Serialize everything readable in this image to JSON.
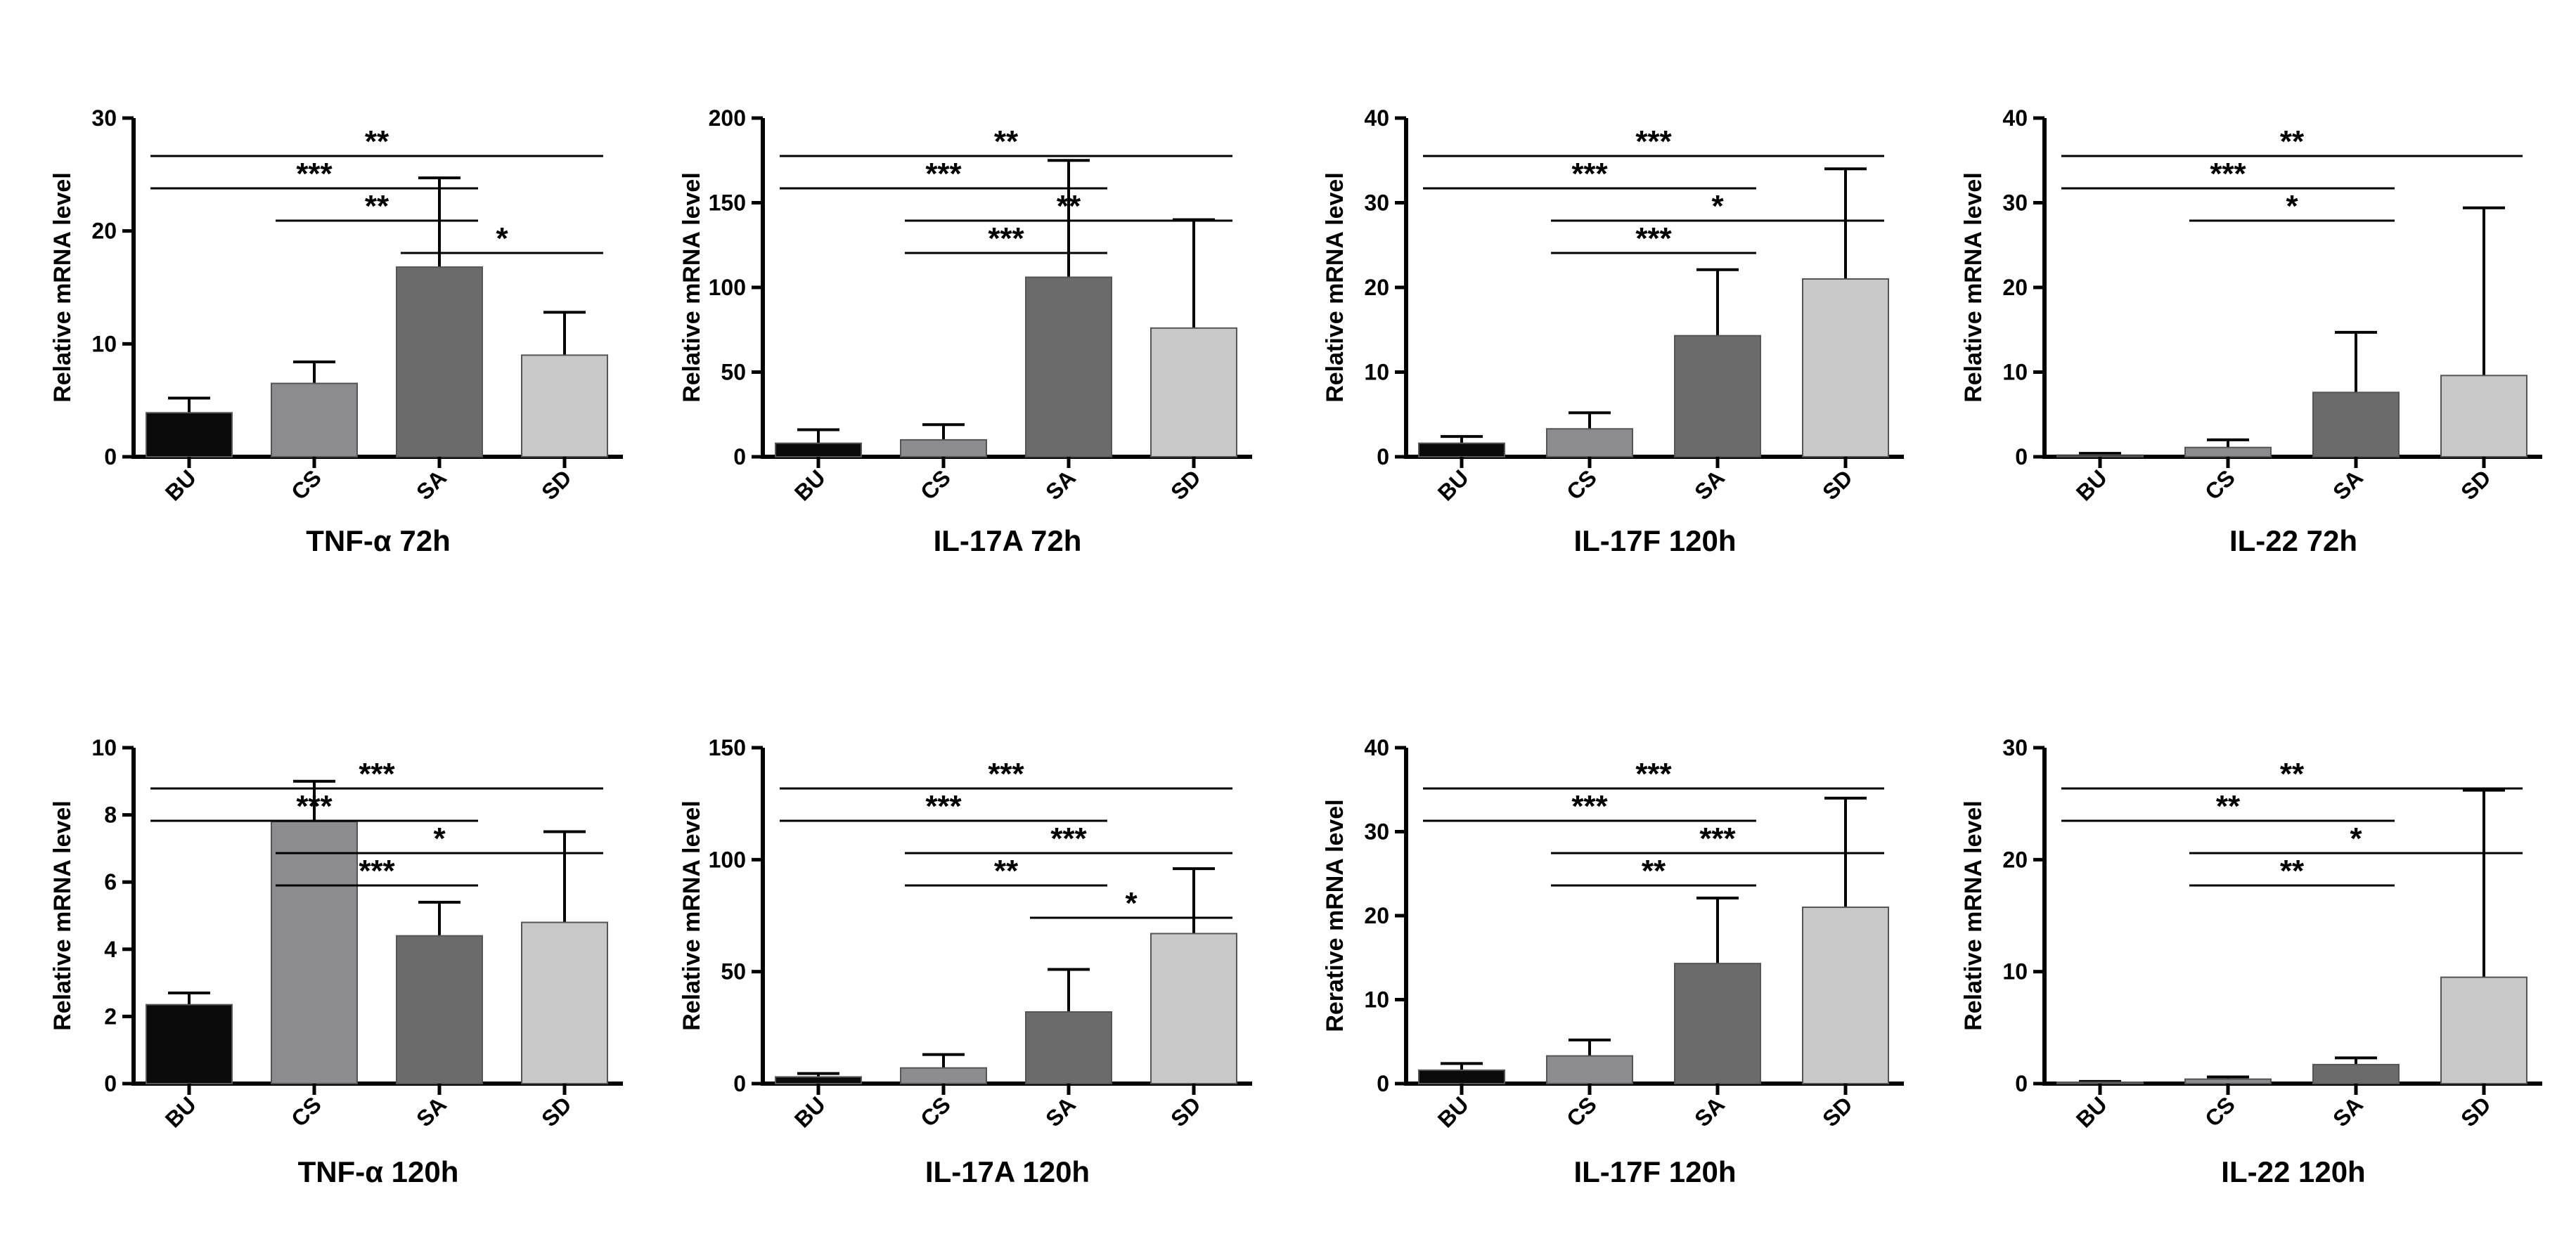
{
  "colors": {
    "BU": "#0a0a0a",
    "CS": "#8c8c90",
    "SA": "#6b6b6b",
    "SD": "#c8c8c8"
  },
  "chart_data": [
    {
      "type": "bar",
      "title": "TNF-α 72h",
      "ylabel": "Relative mRNA level",
      "categories": [
        "BU",
        "CS",
        "SA",
        "SD"
      ],
      "values": [
        3.9,
        6.5,
        16.8,
        9.0
      ],
      "errors": [
        1.3,
        1.9,
        7.9,
        3.8
      ],
      "ylim": [
        0,
        30
      ],
      "yticks": [
        "0",
        "10",
        "20",
        "30"
      ],
      "comparisons": [
        {
          "from": "BU",
          "to": "SD",
          "label": "**"
        },
        {
          "from": "BU",
          "to": "SA",
          "label": "***"
        },
        {
          "from": "CS",
          "to": "SA",
          "label": "**"
        },
        {
          "from": "SA",
          "to": "SD",
          "label": "*"
        }
      ]
    },
    {
      "type": "bar",
      "title": "IL-17A 72h",
      "ylabel": "Relative mRNA level",
      "categories": [
        "BU",
        "CS",
        "SA",
        "SD"
      ],
      "values": [
        8,
        10,
        106,
        76
      ],
      "errors": [
        8,
        9,
        69,
        64
      ],
      "ylim": [
        0,
        200
      ],
      "yticks": [
        "0",
        "50",
        "100",
        "150",
        "200"
      ],
      "comparisons": [
        {
          "from": "BU",
          "to": "SD",
          "label": "**"
        },
        {
          "from": "BU",
          "to": "SA",
          "label": "***"
        },
        {
          "from": "CS",
          "to": "SD",
          "label": "**"
        },
        {
          "from": "CS",
          "to": "SA",
          "label": "***"
        }
      ]
    },
    {
      "type": "bar",
      "title": "IL-17F 120h",
      "ylabel": "Relative mRNA level",
      "categories": [
        "BU",
        "CS",
        "SA",
        "SD"
      ],
      "values": [
        1.6,
        3.3,
        14.3,
        21.0
      ],
      "errors": [
        0.8,
        1.9,
        7.8,
        13.0
      ],
      "ylim": [
        0,
        40
      ],
      "yticks": [
        "0",
        "10",
        "20",
        "30",
        "40"
      ],
      "comparisons": [
        {
          "from": "BU",
          "to": "SD",
          "label": "***"
        },
        {
          "from": "BU",
          "to": "SA",
          "label": "***"
        },
        {
          "from": "CS",
          "to": "SD",
          "label": "*"
        },
        {
          "from": "CS",
          "to": "SA",
          "label": "***"
        }
      ]
    },
    {
      "type": "bar",
      "title": "IL-22 72h",
      "ylabel": "Relative mRNA level",
      "categories": [
        "BU",
        "CS",
        "SA",
        "SD"
      ],
      "values": [
        0.2,
        1.1,
        7.6,
        9.6
      ],
      "errors": [
        0.2,
        0.9,
        7.1,
        19.8
      ],
      "ylim": [
        0,
        40
      ],
      "yticks": [
        "0",
        "10",
        "20",
        "30",
        "40"
      ],
      "comparisons": [
        {
          "from": "BU",
          "to": "SD",
          "label": "**"
        },
        {
          "from": "BU",
          "to": "SA",
          "label": "***"
        },
        {
          "from": "CS",
          "to": "SA",
          "label": "*"
        }
      ]
    },
    {
      "type": "bar",
      "title": "TNF-α  120h",
      "ylabel": "Relative mRNA level",
      "categories": [
        "BU",
        "CS",
        "SA",
        "SD"
      ],
      "values": [
        2.35,
        7.8,
        4.4,
        4.8
      ],
      "errors": [
        0.35,
        1.2,
        1.0,
        2.7
      ],
      "ylim": [
        0,
        10
      ],
      "yticks": [
        "0",
        "2",
        "4",
        "6",
        "8",
        "10"
      ],
      "comparisons": [
        {
          "from": "BU",
          "to": "SD",
          "label": "***"
        },
        {
          "from": "BU",
          "to": "SA",
          "label": "***"
        },
        {
          "from": "CS",
          "to": "SD",
          "label": "*"
        },
        {
          "from": "CS",
          "to": "SA",
          "label": "***"
        }
      ]
    },
    {
      "type": "bar",
      "title": "IL-17A 120h",
      "ylabel": "Relative mRNA level",
      "categories": [
        "BU",
        "CS",
        "SA",
        "SD"
      ],
      "values": [
        3,
        7,
        32,
        67
      ],
      "errors": [
        1.5,
        6,
        19,
        29
      ],
      "ylim": [
        0,
        150
      ],
      "yticks": [
        "0",
        "50",
        "100",
        "150"
      ],
      "comparisons": [
        {
          "from": "BU",
          "to": "SD",
          "label": "***"
        },
        {
          "from": "BU",
          "to": "SA",
          "label": "***"
        },
        {
          "from": "CS",
          "to": "SD",
          "label": "***"
        },
        {
          "from": "CS",
          "to": "SA",
          "label": "**"
        },
        {
          "from": "SA",
          "to": "SD",
          "label": "*"
        }
      ]
    },
    {
      "type": "bar",
      "title": "IL-17F 120h",
      "ylabel": "Rerative mRNA level",
      "categories": [
        "BU",
        "CS",
        "SA",
        "SD"
      ],
      "values": [
        1.6,
        3.3,
        14.3,
        21.0
      ],
      "errors": [
        0.8,
        1.9,
        7.8,
        13.0
      ],
      "ylim": [
        0,
        40
      ],
      "yticks": [
        "0",
        "10",
        "20",
        "30",
        "40"
      ],
      "comparisons": [
        {
          "from": "BU",
          "to": "SD",
          "label": "***"
        },
        {
          "from": "BU",
          "to": "SA",
          "label": "***"
        },
        {
          "from": "CS",
          "to": "SD",
          "label": "***"
        },
        {
          "from": "CS",
          "to": "SA",
          "label": "**"
        }
      ]
    },
    {
      "type": "bar",
      "title": "IL-22 120h",
      "ylabel": "Relative mRNA level",
      "categories": [
        "BU",
        "CS",
        "SA",
        "SD"
      ],
      "values": [
        0.1,
        0.4,
        1.7,
        9.5
      ],
      "errors": [
        0.1,
        0.2,
        0.6,
        16.7
      ],
      "ylim": [
        0,
        30
      ],
      "yticks": [
        "0",
        "10",
        "20",
        "30"
      ],
      "comparisons": [
        {
          "from": "BU",
          "to": "SD",
          "label": "**"
        },
        {
          "from": "BU",
          "to": "SA",
          "label": "**"
        },
        {
          "from": "CS",
          "to": "SD",
          "label": "*"
        },
        {
          "from": "CS",
          "to": "SA",
          "label": "**"
        }
      ]
    }
  ]
}
